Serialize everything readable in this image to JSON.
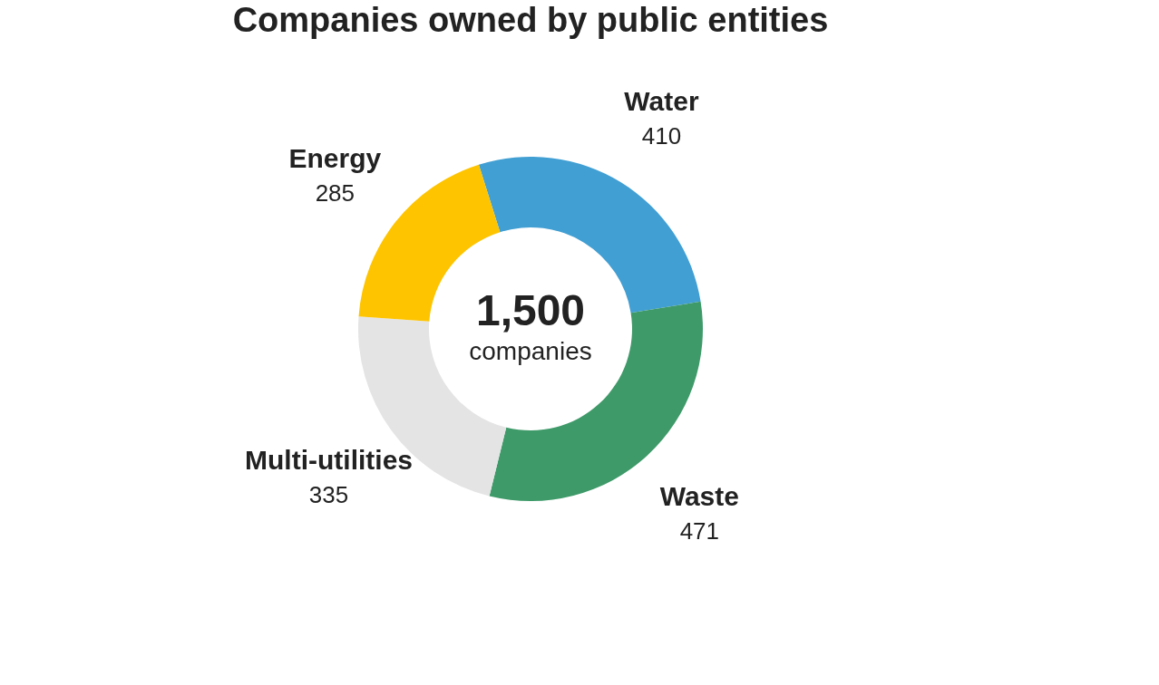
{
  "chart_data": {
    "type": "donut",
    "title": "Companies owned by public entities",
    "categories": [
      "Water",
      "Waste",
      "Multi-utilities",
      "Energy"
    ],
    "values": [
      410,
      471,
      335,
      285
    ],
    "colors": [
      "#419fd3",
      "#3e9a69",
      "#e4e4e4",
      "#fec400"
    ],
    "data_labels": true,
    "annotations": [
      "1,500",
      "companies"
    ]
  }
}
